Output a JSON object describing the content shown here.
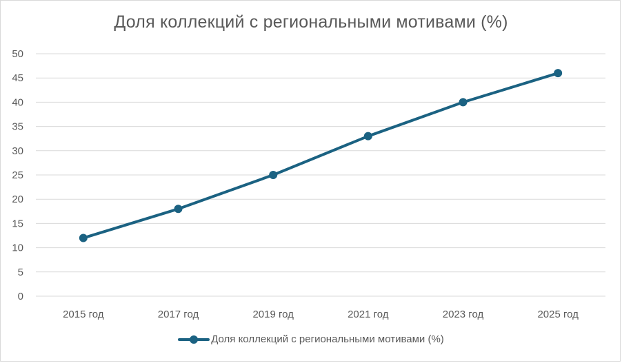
{
  "chart_data": {
    "type": "line",
    "title": "Доля коллекций с региональными мотивами (%)",
    "xlabel": "",
    "ylabel": "",
    "categories": [
      "2015 год",
      "2017 год",
      "2019 год",
      "2021 год",
      "2023 год",
      "2025 год"
    ],
    "series": [
      {
        "name": "Доля коллекций с региональными мотивами (%)",
        "values": [
          12,
          18,
          25,
          33,
          40,
          46
        ],
        "color": "#1b6282"
      }
    ],
    "ylim": [
      0,
      50
    ],
    "yticks": [
      0,
      5,
      10,
      15,
      20,
      25,
      30,
      35,
      40,
      45,
      50
    ],
    "grid": true,
    "legend_position": "bottom",
    "markers": true
  }
}
